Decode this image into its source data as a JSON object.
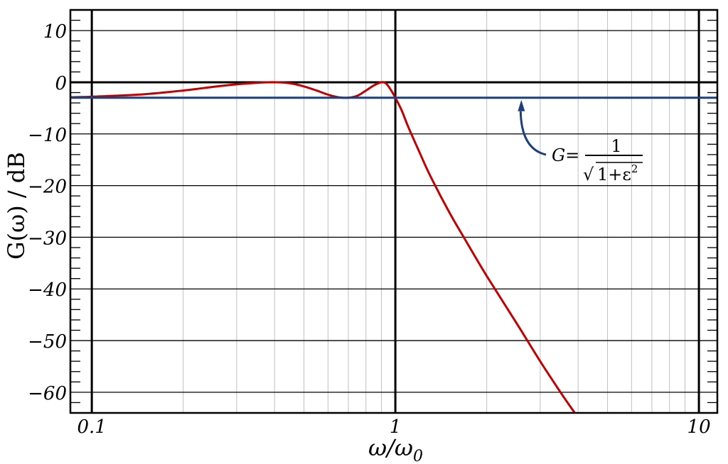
{
  "chart_data": {
    "type": "line",
    "title": "",
    "xlabel": "ω/ω",
    "xlabel_sub": "0",
    "ylabel": "G(ω) / dB",
    "xscale": "log",
    "xlim": [
      0.085,
      11.5
    ],
    "ylim": [
      -64,
      14
    ],
    "x_ticks": [
      0.1,
      1,
      10
    ],
    "x_tick_labels": [
      "0.1",
      "1",
      "10"
    ],
    "y_ticks": [
      10,
      0,
      -10,
      -20,
      -30,
      -40,
      -50,
      -60
    ],
    "y_tick_labels": [
      "10",
      "0",
      "−10",
      "−20",
      "−30",
      "−40",
      "−50",
      "−60"
    ],
    "grid": true,
    "colors": {
      "response": "#c00000",
      "ripple_level": "#1f3f7a",
      "grid_minor": "#c0c0c0",
      "grid_major": "#000000"
    },
    "series": [
      {
        "key": "response",
        "x": [
          0.085,
          0.1,
          0.12,
          0.15,
          0.2,
          0.25,
          0.3,
          0.35,
          0.4,
          0.45,
          0.5,
          0.55,
          0.6,
          0.65,
          0.7,
          0.75,
          0.8,
          0.85,
          0.9,
          0.93,
          0.96,
          1.0,
          1.05,
          1.1,
          1.2,
          1.3,
          1.5,
          1.7,
          2.0,
          2.5,
          3.0,
          3.5,
          3.9
        ],
        "values": [
          -2.9,
          -2.8,
          -2.6,
          -2.3,
          -1.6,
          -0.9,
          -0.4,
          -0.1,
          0.0,
          -0.2,
          -0.8,
          -1.6,
          -2.4,
          -2.9,
          -3.0,
          -2.6,
          -1.6,
          -0.6,
          0.0,
          -0.2,
          -1.2,
          -3.0,
          -5.5,
          -8.5,
          -13.5,
          -18.0,
          -25.0,
          -30.5,
          -37.5,
          -46.5,
          -54.0,
          -60.0,
          -64.0
        ]
      },
      {
        "key": "ripple_level",
        "x": [
          0.085,
          11.5
        ],
        "values": [
          -3.0,
          -3.0
        ]
      }
    ],
    "annotations": [
      {
        "text_lhs": "G=",
        "numerator": "1",
        "sqrt_symbol": "√",
        "denominator": "1+ε",
        "denominator_sup": "2",
        "arrow_target": {
          "x": 2.6,
          "y": -3.0
        }
      }
    ]
  }
}
